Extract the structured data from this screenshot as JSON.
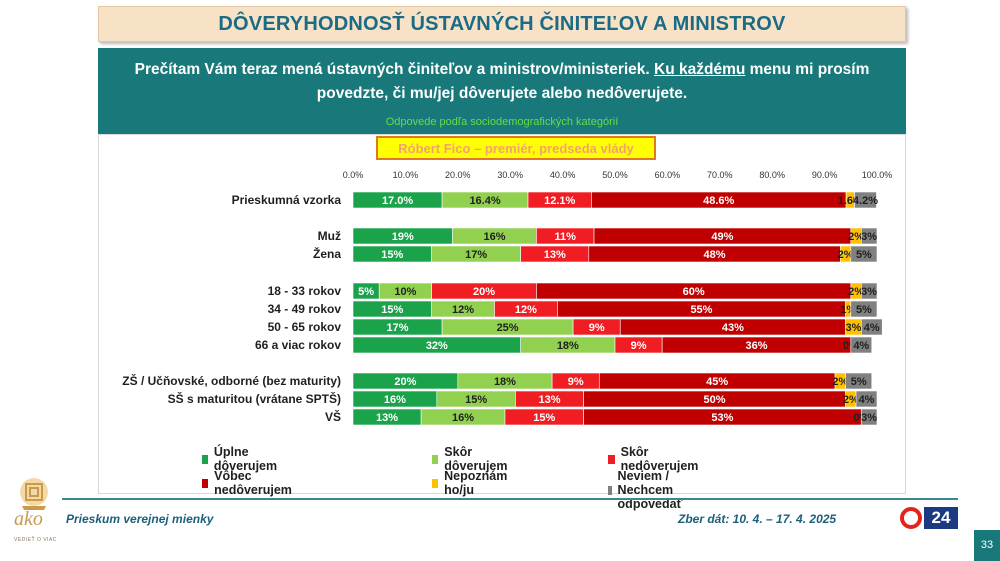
{
  "title": "DÔVERYHODNOSŤ ÚSTAVNÝCH ČINITEĽOV A MINISTROV",
  "question": {
    "part1": "Prečítam Vám teraz mená ústavných činiteľov a ministrov/ministeriek. ",
    "underlined": "Ku každému",
    "part2": " menu mi prosím povedzte, či mu/jej dôverujete alebo nedôverujete.",
    "subnote": "Odpovede podľa sociodemografických kategórií"
  },
  "subtitle": "Róbert Fico – premiér, predseda vlády",
  "chart_data": {
    "type": "bar",
    "orientation": "horizontal",
    "stacked": true,
    "xlim": [
      0,
      100
    ],
    "x_ticks": [
      "0.0%",
      "10.0%",
      "20.0%",
      "30.0%",
      "40.0%",
      "50.0%",
      "60.0%",
      "70.0%",
      "80.0%",
      "90.0%",
      "100.0%"
    ],
    "x_axis_position": "top",
    "legend_position": "bottom",
    "categories": [
      "Prieskumná vzorka",
      "Muž",
      "Žena",
      "18 - 33 rokov",
      "34 - 49 rokov",
      "50 - 65 rokov",
      "66 a viac rokov",
      "ZŠ / Učňovské, odborné (bez maturity)",
      "SŠ s maturitou (vrátane SPTŠ)",
      "VŠ"
    ],
    "groups": [
      [
        0
      ],
      [
        1,
        2
      ],
      [
        3,
        4,
        5,
        6
      ],
      [
        7,
        8,
        9
      ]
    ],
    "series": [
      {
        "name": "Úplne dôverujem",
        "color": "#1aa34a",
        "values": [
          17.0,
          19,
          15,
          5,
          15,
          17,
          32,
          20,
          16,
          13
        ],
        "labels": [
          "17.0%",
          "19%",
          "15%",
          "5%",
          "15%",
          "17%",
          "32%",
          "20%",
          "16%",
          "13%"
        ]
      },
      {
        "name": "Skôr dôverujem",
        "color": "#92d050",
        "values": [
          16.4,
          16,
          17,
          10,
          12,
          25,
          18,
          18,
          15,
          16
        ],
        "labels": [
          "16.4%",
          "16%",
          "17%",
          "10%",
          "12%",
          "25%",
          "18%",
          "18%",
          "15%",
          "16%"
        ]
      },
      {
        "name": "Skôr nedôverujem",
        "color": "#f01e23",
        "values": [
          12.1,
          11,
          13,
          20,
          12,
          9,
          9,
          9,
          13,
          15
        ],
        "labels": [
          "12.1%",
          "11%",
          "13%",
          "20%",
          "12%",
          "9%",
          "9%",
          "9%",
          "13%",
          "15%"
        ]
      },
      {
        "name": "Vôbec nedôverujem",
        "color": "#c00000",
        "values": [
          48.6,
          49,
          48,
          60,
          55,
          43,
          36,
          45,
          50,
          53
        ],
        "labels": [
          "48.6%",
          "49%",
          "48%",
          "60%",
          "55%",
          "43%",
          "36%",
          "45%",
          "50%",
          "53%"
        ]
      },
      {
        "name": "Nepoznám ho/ju",
        "color": "#ffc000",
        "values": [
          1.6,
          2,
          2,
          2,
          1,
          3,
          0,
          2,
          2,
          0
        ],
        "labels": [
          "1.6%",
          "2%",
          "2%",
          "2%",
          "1%",
          "3%",
          "0%",
          "2%",
          "2%",
          "0%"
        ]
      },
      {
        "name": "Neviem / Nechcem odpovedať",
        "color": "#808080",
        "values": [
          4.2,
          3,
          5,
          3,
          5,
          4,
          4,
          5,
          4,
          3
        ],
        "labels": [
          "4.2%",
          "3%",
          "5%",
          "3%",
          "5%",
          "4%",
          "4%",
          "5%",
          "4%",
          "3%"
        ]
      }
    ]
  },
  "footer": {
    "left": "Prieskum verejnej mienky",
    "right": "Zber dát: 10. 4. – 17. 4. 2025",
    "logo_text": "ako",
    "logo_sub": "VEDIEŤ O VIAC",
    "tv_logo": "24",
    "page_number": "33"
  }
}
